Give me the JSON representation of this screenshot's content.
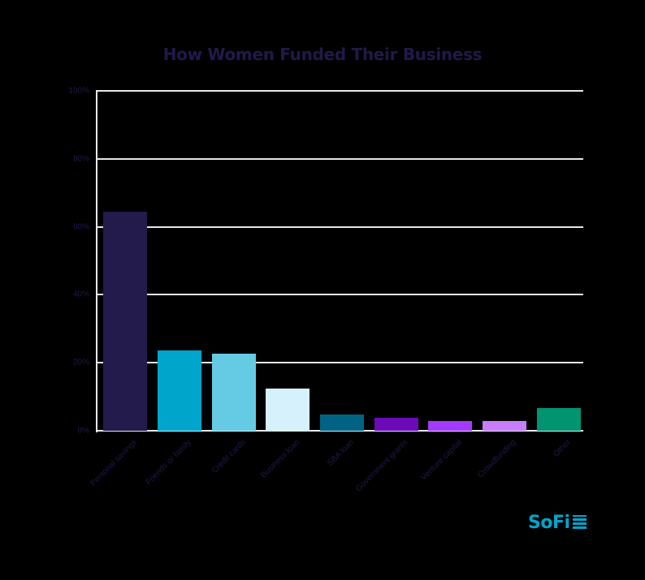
{
  "chart_data": {
    "type": "bar",
    "title": "How Women Funded Their Business",
    "xlabel": "",
    "ylabel": "",
    "ylim": [
      0,
      100
    ],
    "yticks": [
      "0%",
      "20%",
      "40%",
      "60%",
      "80%",
      "100%"
    ],
    "grid": true,
    "legend": null,
    "categories": [
      "Personal savings",
      "Friends or family",
      "Credit cards",
      "Business loan",
      "SBA loan",
      "Government grants",
      "Venture capital",
      "Crowdfunding",
      "Other"
    ],
    "values": [
      64.4,
      23.6,
      22.7,
      12.4,
      4.8,
      3.8,
      2.9,
      2.9,
      6.7
    ],
    "colors": [
      "#221b4b",
      "#00a5cc",
      "#65cbe4",
      "#d6f1fb",
      "#006384",
      "#6a0bb7",
      "#a23bff",
      "#c67efd",
      "#009471"
    ]
  },
  "branding": {
    "logo_text": "SoFi"
  }
}
